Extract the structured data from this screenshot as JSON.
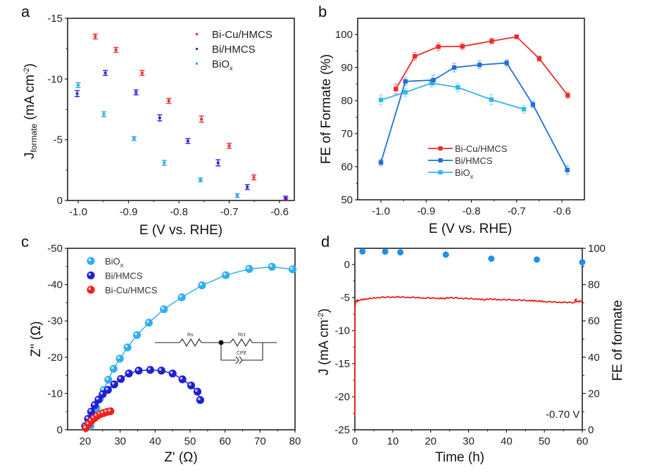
{
  "chart_data": [
    {
      "id": "a",
      "panel_label": "a",
      "type": "scatter",
      "xlabel": "E (V vs. RHE)",
      "ylabel_main": "J",
      "ylabel_sub": "formate",
      "ylabel_rest": " (mA cm",
      "ylabel_sup": "-2",
      "ylabel_end": ")",
      "xlim": [
        -1.03,
        -0.575
      ],
      "ylim": [
        0,
        -15
      ],
      "xticks": [
        -1.0,
        -0.9,
        -0.8,
        -0.7,
        -0.6
      ],
      "xtick_labels": [
        "-1.0",
        "-0.9",
        "-0.8",
        "-0.7",
        "-0.6"
      ],
      "yticks": [
        0,
        -5,
        -10,
        -15
      ],
      "ytick_labels": [
        "0",
        "-5",
        "-10",
        "-15"
      ],
      "legend_position": "top-right",
      "series": [
        {
          "name": "Bi-Cu/HMCS",
          "color": "#ee2a2a",
          "x": [
            -0.966,
            -0.925,
            -0.873,
            -0.82,
            -0.755,
            -0.7,
            -0.651,
            -0.587
          ],
          "y": [
            -13.5,
            -12.4,
            -10.5,
            -8.2,
            -6.7,
            -4.5,
            -1.9,
            -0.1
          ],
          "err": [
            0.2,
            0.2,
            0.2,
            0.2,
            0.25,
            0.2,
            0.2,
            0.1
          ]
        },
        {
          "name": "Bi/HMCS",
          "color": "#2626d9",
          "x": [
            -1.002,
            -0.946,
            -0.885,
            -0.838,
            -0.782,
            -0.722,
            -0.664,
            -0.588
          ],
          "y": [
            -8.8,
            -10.5,
            -8.9,
            -6.8,
            -4.9,
            -3.1,
            -1.1,
            -0.2
          ],
          "err": [
            0.25,
            0.2,
            0.2,
            0.25,
            0.2,
            0.25,
            0.2,
            0.15
          ]
        },
        {
          "name": "BiOx",
          "name_main": "BiO",
          "name_sub": "x",
          "color": "#27a8ee",
          "x": [
            -1.0,
            -0.949,
            -0.889,
            -0.829,
            -0.757,
            -0.684
          ],
          "y": [
            -9.5,
            -7.1,
            -5.1,
            -3.1,
            -1.7,
            -0.4
          ],
          "err": [
            0.2,
            0.2,
            0.15,
            0.2,
            0.15,
            0.15
          ]
        }
      ]
    },
    {
      "id": "b",
      "panel_label": "b",
      "type": "line",
      "xlabel": "E (V vs. RHE)",
      "ylabel": "FE of Formate (%)",
      "xlim": [
        -1.05,
        -0.57
      ],
      "ylim": [
        50,
        105
      ],
      "xticks": [
        -1.0,
        -0.9,
        -0.8,
        -0.7,
        -0.6
      ],
      "xtick_labels": [
        "-1.0",
        "-0.9",
        "-0.8",
        "-0.7",
        "-0.6"
      ],
      "yticks": [
        50,
        60,
        70,
        80,
        90,
        100
      ],
      "ytick_labels": [
        "50",
        "60",
        "70",
        "80",
        "90",
        "100"
      ],
      "legend_position": "lower-center",
      "series": [
        {
          "name": "Bi-Cu/HMCS",
          "color": "#ee2a2a",
          "x": [
            -0.967,
            -0.925,
            -0.873,
            -0.82,
            -0.755,
            -0.7,
            -0.65,
            -0.587
          ],
          "y": [
            83.5,
            93.4,
            96.3,
            96.4,
            98.0,
            99.3,
            92.7,
            81.6
          ],
          "err": [
            1.5,
            1.2,
            1.2,
            1.0,
            0.9,
            0.6,
            0.8,
            1.0
          ]
        },
        {
          "name": "Bi/HMCS",
          "color": "#1e6fd9",
          "x": [
            -1.0,
            -0.946,
            -0.884,
            -0.838,
            -0.782,
            -0.722,
            -0.664,
            -0.588
          ],
          "y": [
            61.3,
            85.8,
            86.2,
            90.0,
            90.8,
            91.4,
            78.8,
            59.0
          ],
          "err": [
            1.0,
            1.2,
            1.5,
            1.3,
            1.2,
            1.0,
            1.0,
            1.3
          ]
        },
        {
          "name": "BiOx",
          "name_main": "BiO",
          "name_sub": "x",
          "color": "#30b8f0",
          "x": [
            -1.0,
            -0.946,
            -0.888,
            -0.83,
            -0.756,
            -0.684
          ],
          "y": [
            80.2,
            82.5,
            85.3,
            84.0,
            80.3,
            77.4
          ],
          "err": [
            1.5,
            1.2,
            1.2,
            1.3,
            1.5,
            1.2
          ]
        }
      ]
    },
    {
      "id": "c",
      "panel_label": "c",
      "type": "scatter",
      "xlabel": "Z' (Ω)",
      "ylabel": "Z'' (Ω)",
      "xlim": [
        15,
        80
      ],
      "ylim": [
        0,
        -50
      ],
      "xticks": [
        20,
        30,
        40,
        50,
        60,
        70,
        80
      ],
      "xtick_labels": [
        "20",
        "30",
        "40",
        "50",
        "60",
        "70",
        "80"
      ],
      "yticks": [
        0,
        -10,
        -20,
        -30,
        -40,
        -50
      ],
      "ytick_labels": [
        "0",
        "-10",
        "-20",
        "-30",
        "-40",
        "-50"
      ],
      "legend_position": "top-left",
      "inset": {
        "type": "equivalent-circuit",
        "labels": [
          "Rs",
          "Rct",
          "CPE"
        ]
      },
      "series": [
        {
          "name": "BiOx",
          "name_main": "BiO",
          "name_sub": "x",
          "color": "#33aef0",
          "x": [
            21.5,
            22.3,
            23.2,
            24.2,
            25.3,
            26.6,
            28.1,
            29.9,
            32.1,
            34.8,
            38.2,
            42.5,
            47.6,
            53.4,
            60.2,
            66.9,
            73.4,
            79.3
          ],
          "y": [
            -1.0,
            -3.5,
            -6.0,
            -8.5,
            -11.0,
            -13.8,
            -16.8,
            -19.6,
            -22.7,
            -26.1,
            -29.5,
            -33.2,
            -36.5,
            -39.8,
            -42.6,
            -44.3,
            -44.9,
            -44.2
          ]
        },
        {
          "name": "Bi/HMCS",
          "color": "#1f1fd6",
          "x": [
            20.0,
            20.8,
            21.7,
            22.7,
            23.8,
            25.0,
            26.5,
            28.3,
            30.2,
            32.5,
            35.3,
            38.6,
            41.8,
            45.0,
            47.8,
            50.3,
            52.1,
            52.9
          ],
          "y": [
            -1.0,
            -3.0,
            -5.0,
            -6.8,
            -8.3,
            -9.8,
            -11.0,
            -12.5,
            -14.0,
            -15.5,
            -16.3,
            -16.5,
            -16.3,
            -15.5,
            -13.9,
            -12.2,
            -10.5,
            -8.2
          ]
        },
        {
          "name": "Bi-Cu/HMCS",
          "color": "#ee2020",
          "x": [
            20.2,
            21.0,
            21.8,
            22.6,
            23.4,
            24.3,
            25.2,
            26.2,
            27.2
          ],
          "y": [
            -0.5,
            -1.6,
            -2.5,
            -3.2,
            -3.8,
            -4.3,
            -4.6,
            -4.9,
            -5.1
          ]
        }
      ],
      "legend_order": [
        "BiOx",
        "Bi/HMCS",
        "Bi-Cu/HMCS"
      ]
    },
    {
      "id": "d",
      "panel_label": "d",
      "type": "line",
      "xlabel": "Time (h)",
      "ylabel_left_main": "J (mA cm",
      "ylabel_left_sup": "-2",
      "ylabel_left_end": ")",
      "ylabel_right": "FE of formate",
      "xlim": [
        0,
        60
      ],
      "ylim_left": [
        -25,
        2.4
      ],
      "ylim_right": [
        0,
        100
      ],
      "xticks": [
        0,
        10,
        20,
        30,
        40,
        50,
        60
      ],
      "xtick_labels": [
        "0",
        "10",
        "20",
        "30",
        "40",
        "50",
        "60"
      ],
      "yticks_left": [
        0,
        -5,
        -10,
        -15,
        -20,
        -25
      ],
      "ytick_labels_left": [
        "0",
        "-5",
        "-10",
        "-15",
        "-20",
        "-25"
      ],
      "yticks_right": [
        0,
        20,
        40,
        60,
        80,
        100
      ],
      "ytick_labels_right": [
        "0",
        "20",
        "40",
        "60",
        "80",
        "100"
      ],
      "annotation": "-0.70 V",
      "series": [
        {
          "name": "J",
          "axis": "left",
          "color": "#ee1c1c",
          "x": [
            0,
            0.05,
            0.2,
            1,
            3,
            6,
            10,
            14,
            18,
            22,
            24,
            24.2,
            28,
            32,
            34.5,
            34.7,
            38,
            42,
            46,
            48,
            50,
            54,
            58,
            58.2,
            58.5,
            60
          ],
          "y": [
            -23,
            -6.5,
            -5.6,
            -5.4,
            -5.2,
            -5.0,
            -4.9,
            -4.95,
            -5.05,
            -5.1,
            -5.15,
            -5.0,
            -5.1,
            -5.2,
            -5.35,
            -5.2,
            -5.3,
            -5.35,
            -5.45,
            -5.5,
            -5.6,
            -5.7,
            -5.75,
            -5.2,
            -5.6,
            -5.55
          ]
        },
        {
          "name": "FE",
          "axis": "right",
          "color": "#1e8ff0",
          "x": [
            2,
            8,
            12,
            24,
            36,
            48,
            60
          ],
          "y": [
            98.3,
            98.2,
            97.8,
            96.5,
            94.3,
            93.8,
            92.3
          ]
        }
      ]
    }
  ]
}
